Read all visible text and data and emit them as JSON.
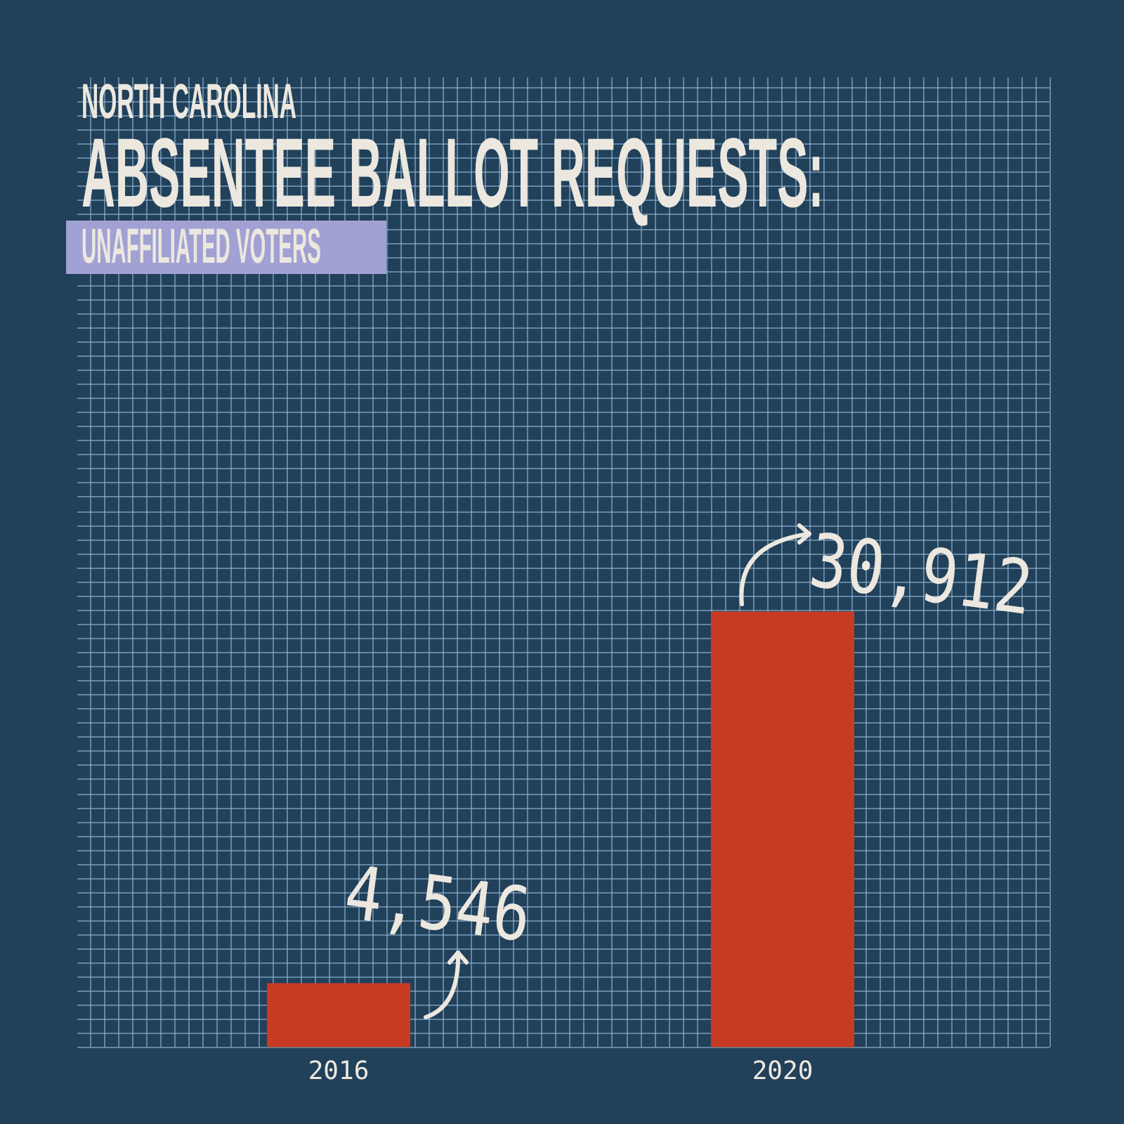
{
  "chart_data": {
    "type": "bar",
    "title": "NORTH CAROLINA\nABSENTEE BALLOT REQUESTS:",
    "subtitle": "UNAFFILIATED VOTERS",
    "categories": [
      "2016",
      "2020"
    ],
    "values": [
      4546,
      30912
    ],
    "color": "#c63b22",
    "value_labels": [
      "4,546",
      "30,912"
    ],
    "grid": true,
    "tick_labels": "x"
  }
}
